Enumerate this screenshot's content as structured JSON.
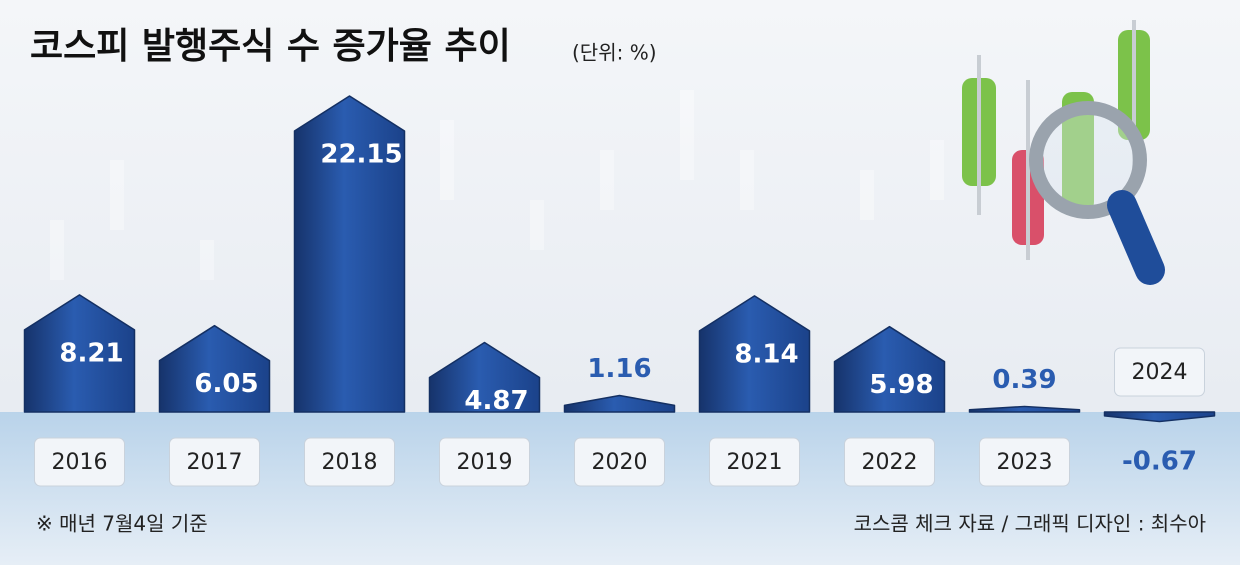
{
  "chart_data": {
    "type": "bar",
    "title": "코스피 발행주식 수 증가율 추이",
    "subtitle": "(단위: %)",
    "categories": [
      "2016",
      "2017",
      "2018",
      "2019",
      "2020",
      "2021",
      "2022",
      "2023",
      "2024"
    ],
    "values": [
      8.21,
      6.05,
      22.15,
      4.87,
      1.16,
      8.14,
      5.98,
      0.39,
      -0.67
    ],
    "color": "#1f4d9a",
    "note": "※ 매년 7월4일 기준",
    "source": "코스콤 체크 자료 / 그래픽 디자인 : 최수아"
  }
}
